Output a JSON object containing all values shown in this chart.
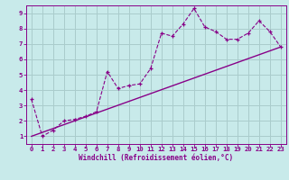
{
  "title": "",
  "xlabel": "Windchill (Refroidissement éolien,°C)",
  "ylabel": "",
  "bg_color": "#c8eaea",
  "line_color": "#880088",
  "grid_color": "#aacccc",
  "x_data": [
    0,
    1,
    2,
    3,
    4,
    5,
    6,
    7,
    8,
    9,
    10,
    11,
    12,
    13,
    14,
    15,
    16,
    17,
    18,
    19,
    20,
    21,
    22,
    23
  ],
  "y_data": [
    3.4,
    1.0,
    1.4,
    2.0,
    2.1,
    2.3,
    2.6,
    5.2,
    4.1,
    4.3,
    4.4,
    5.4,
    7.7,
    7.5,
    8.3,
    9.3,
    8.1,
    7.8,
    7.3,
    7.3,
    7.7,
    8.5,
    7.8,
    6.8
  ],
  "trend_x": [
    0,
    23
  ],
  "trend_y": [
    1.0,
    6.8
  ],
  "xlim": [
    -0.5,
    23.5
  ],
  "ylim": [
    0.5,
    9.5
  ],
  "xticks": [
    0,
    1,
    2,
    3,
    4,
    5,
    6,
    7,
    8,
    9,
    10,
    11,
    12,
    13,
    14,
    15,
    16,
    17,
    18,
    19,
    20,
    21,
    22,
    23
  ],
  "yticks": [
    1,
    2,
    3,
    4,
    5,
    6,
    7,
    8,
    9
  ]
}
